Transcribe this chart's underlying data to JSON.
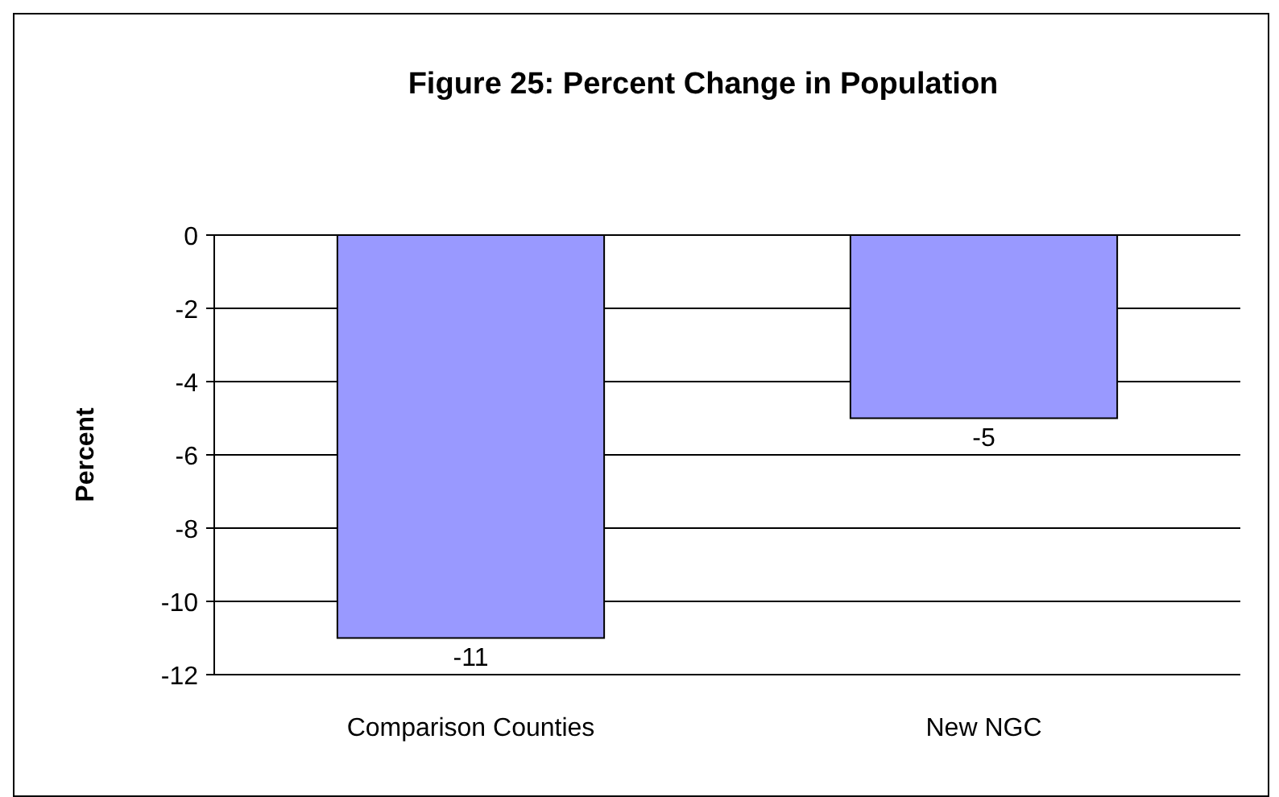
{
  "chart_data": {
    "type": "bar",
    "title": "Figure 25: Percent Change in Population",
    "ylabel": "Percent",
    "categories": [
      "Comparison Counties",
      "New NGC"
    ],
    "values": [
      -11,
      -5
    ],
    "color": "#9999ff",
    "ylim": [
      -12,
      0
    ],
    "yticks": [
      -12,
      -10,
      -8,
      -6,
      -4,
      -2,
      0
    ],
    "grid": "y",
    "data_labels": true
  }
}
